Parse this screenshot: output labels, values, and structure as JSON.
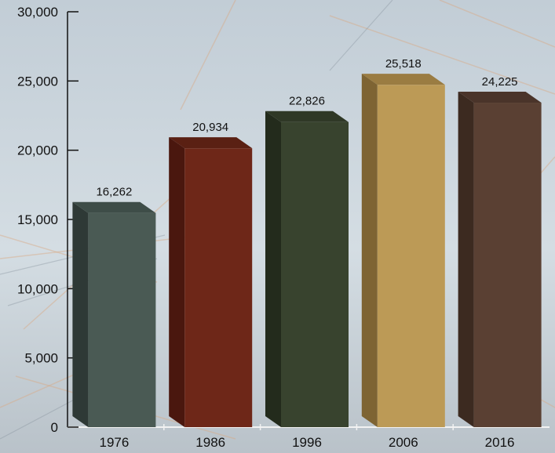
{
  "chart_data": {
    "type": "bar",
    "categories": [
      "1976",
      "1986",
      "1996",
      "2006",
      "2016"
    ],
    "values": [
      16262,
      20934,
      22826,
      25518,
      24225
    ],
    "data_labels": [
      "16,262",
      "20,934",
      "22,826",
      "25,518",
      "24,225"
    ],
    "y_ticks": [
      0,
      5000,
      10000,
      15000,
      20000,
      25000,
      30000
    ],
    "y_tick_labels": [
      "0",
      "5,000",
      "10,000",
      "15,000",
      "20,000",
      "25,000",
      "30,000"
    ],
    "ylim": [
      0,
      30000
    ],
    "grid": false,
    "legend": "none",
    "bar_style": "3d",
    "bar_colors": [
      "#4a5a54",
      "#6e2718",
      "#38432e",
      "#bc9a56",
      "#5a4033"
    ],
    "bar_side_colors": [
      "#2e3936",
      "#4a170e",
      "#232b1c",
      "#7e6433",
      "#3c2a20"
    ],
    "bar_top_colors": [
      "#3e4d48",
      "#5a2013",
      "#2f3826",
      "#9a7c42",
      "#4a342a"
    ],
    "title": "",
    "xlabel": "",
    "ylabel": ""
  }
}
